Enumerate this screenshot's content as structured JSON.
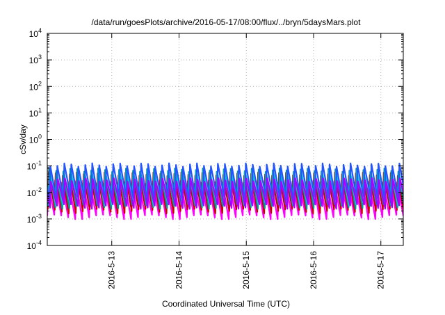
{
  "chart_data": {
    "type": "line",
    "title": "/data/run/goesPlots/archive/2016-05-17/08:00/flux/../bryn/5daysMars.plot",
    "xlabel": "Coordinated Universal Time (UTC)",
    "ylabel": "cSv/day",
    "yscale": "log",
    "ylim": [
      0.0001,
      10000
    ],
    "xlim": [
      "2016-05-12 01:00",
      "2016-05-17 08:00"
    ],
    "x_tick_labels": [
      "2016-5-13",
      "2016-5-14",
      "2016-5-15",
      "2016-5-16",
      "2016-5-17"
    ],
    "y_tick_labels": [
      {
        "base": "10",
        "exp": "-4"
      },
      {
        "base": "10",
        "exp": "-3"
      },
      {
        "base": "10",
        "exp": "-2"
      },
      {
        "base": "10",
        "exp": "-1"
      },
      {
        "base": "10",
        "exp": "0"
      },
      {
        "base": "10",
        "exp": "1"
      },
      {
        "base": "10",
        "exp": "2"
      },
      {
        "base": "10",
        "exp": "3"
      },
      {
        "base": "10",
        "exp": "4"
      }
    ],
    "grid": true,
    "pattern": {
      "description": "sawtooth, one rise per Mars orbital-period peak",
      "peaks_count": 51
    },
    "series": [
      {
        "color": "#ff00ff",
        "low": 0.0012,
        "high": 0.025
      },
      {
        "color": "#cc0000",
        "low": 0.002,
        "high": 0.05
      },
      {
        "color": "#009999",
        "low": 0.003,
        "high": 0.07
      },
      {
        "color": "#00cccc",
        "low": 0.004,
        "high": 0.06
      },
      {
        "color": "#2255ff",
        "low": 0.006,
        "high": 0.11
      },
      {
        "color": "#aa00ff",
        "low": 0.003,
        "high": 0.03
      }
    ]
  }
}
